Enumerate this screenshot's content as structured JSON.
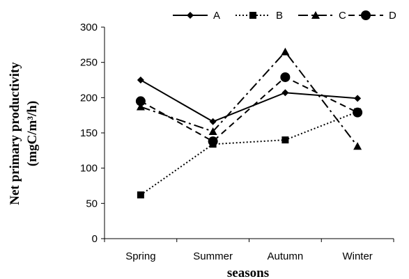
{
  "chart_data": {
    "type": "line",
    "categories": [
      "Spring",
      "Summer",
      "Autumn",
      "Winter"
    ],
    "series": [
      {
        "name": "A",
        "values": [
          225,
          166,
          207,
          199
        ],
        "marker": "diamond",
        "dash": "solid"
      },
      {
        "name": "B",
        "values": [
          62,
          134,
          140,
          180
        ],
        "marker": "square",
        "dash": "dotted"
      },
      {
        "name": "C",
        "values": [
          187,
          152,
          265,
          131
        ],
        "marker": "triangle",
        "dash": "dashdot"
      },
      {
        "name": "D",
        "values": [
          195,
          138,
          229,
          179
        ],
        "marker": "circle",
        "dash": "dashed"
      }
    ],
    "xlabel": "seasons",
    "ylabel_line1": "Net primary productivity",
    "ylabel_line2": "(mgC/m³/h)",
    "ylim": [
      0,
      300
    ],
    "yticks": [
      0,
      50,
      100,
      150,
      200,
      250,
      300
    ],
    "grid": false,
    "legend_position": "top",
    "line_color": "#000000"
  }
}
